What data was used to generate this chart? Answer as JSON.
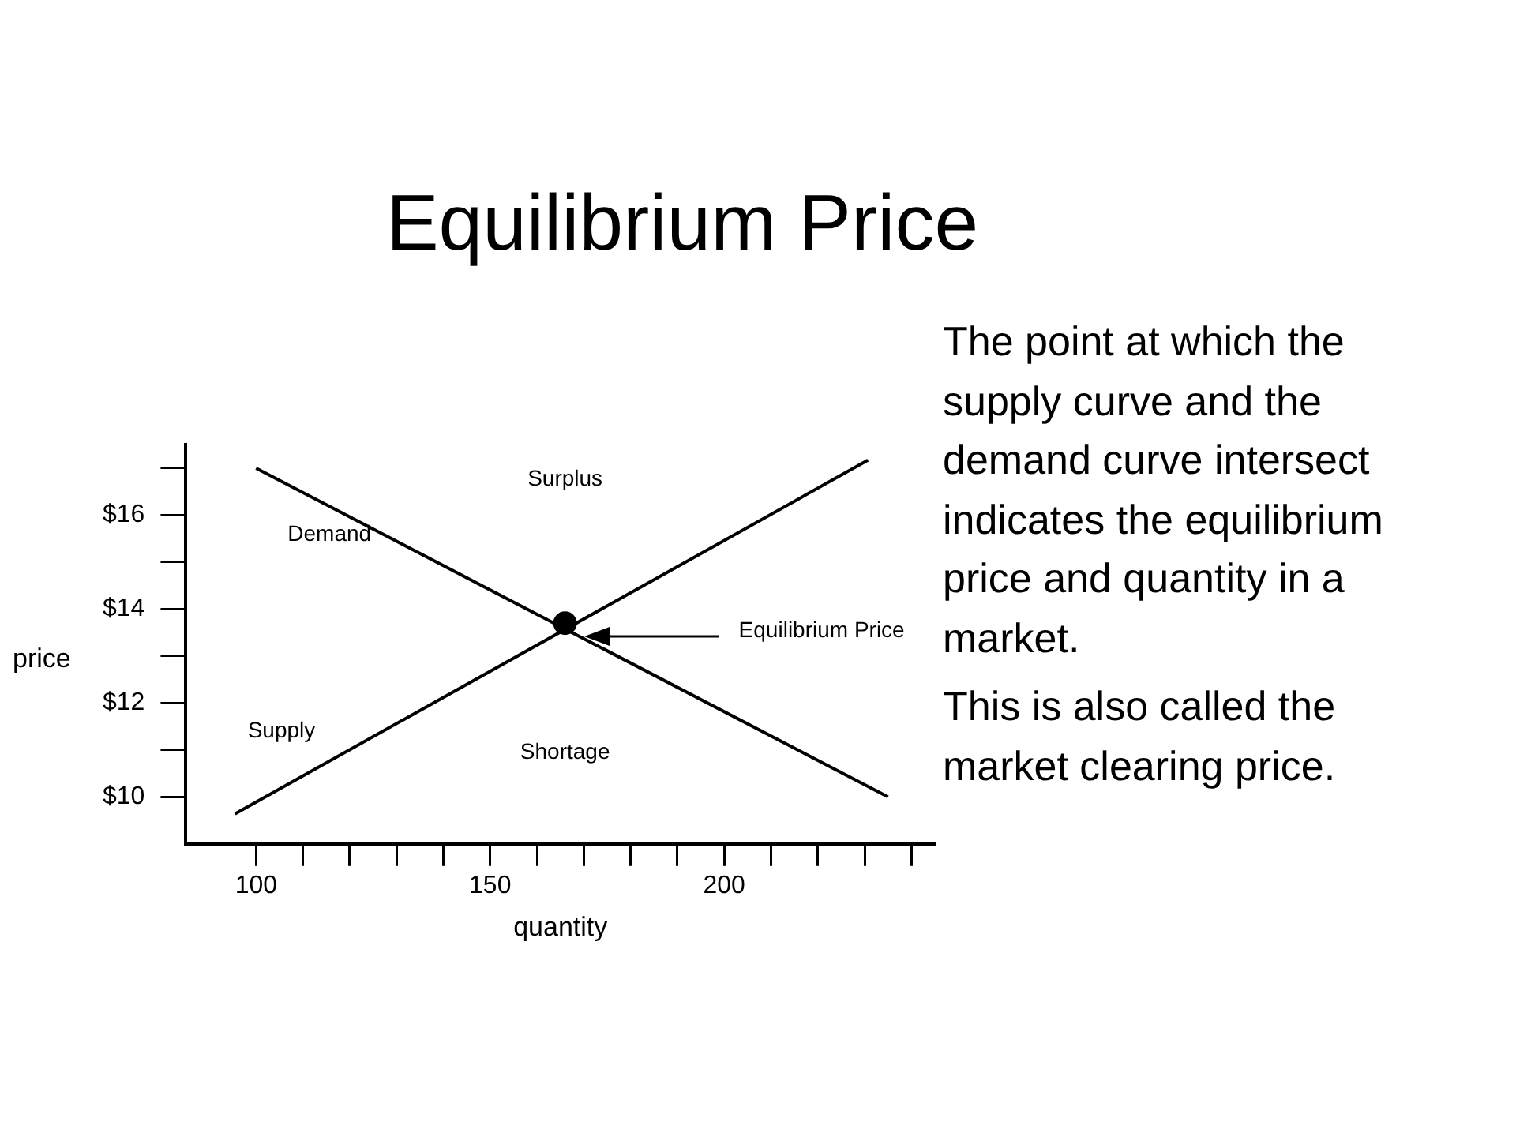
{
  "chart_data": {
    "type": "line",
    "title": "Equilibrium Price",
    "xlabel": "quantity",
    "ylabel": "price",
    "xlim": [
      85,
      245
    ],
    "ylim": [
      9,
      17.5
    ],
    "xticks": [
      100,
      {
        "value": 110,
        "label": null
      },
      {
        "value": 120,
        "label": null
      },
      {
        "value": 130,
        "label": null
      },
      {
        "value": 140,
        "label": null
      },
      150,
      {
        "value": 160,
        "label": null
      },
      {
        "value": 170,
        "label": null
      },
      {
        "value": 180,
        "label": null
      },
      {
        "value": 190,
        "label": null
      },
      200,
      {
        "value": 210,
        "label": null
      },
      {
        "value": 220,
        "label": null
      },
      {
        "value": 230,
        "label": null
      },
      {
        "value": 240,
        "label": null
      }
    ],
    "yticks": [
      {
        "value": 10,
        "label": "$10"
      },
      {
        "value": 11,
        "label": null
      },
      {
        "value": 12,
        "label": "$12"
      },
      {
        "value": 13,
        "label": null
      },
      {
        "value": 14,
        "label": "$14"
      },
      {
        "value": 15,
        "label": null
      },
      {
        "value": 16,
        "label": "$16"
      },
      {
        "value": 17,
        "label": null
      }
    ],
    "grid": false,
    "legend": false,
    "marker": "none",
    "line_style": "solid",
    "series": [
      {
        "name": "Demand",
        "color": "#000000",
        "x": [
          100,
          235
        ],
        "values": [
          17,
          10
        ]
      },
      {
        "name": "Supply",
        "color": "#000000",
        "x": [
          95.5,
          230.7
        ],
        "values": [
          9.64,
          17.17
        ]
      },
      {
        "type": "scatter",
        "marker": "circle",
        "color": "#000000",
        "x": [
          166
        ],
        "values": [
          13.7
        ]
      }
    ],
    "annotations": [
      "Surplus",
      "Shortage",
      "Equilibrium Price",
      "The point at which the supply curve and the demand curve intersect indicates the equilibrium price and quantity in a market.",
      "This is also called the market clearing price."
    ]
  }
}
